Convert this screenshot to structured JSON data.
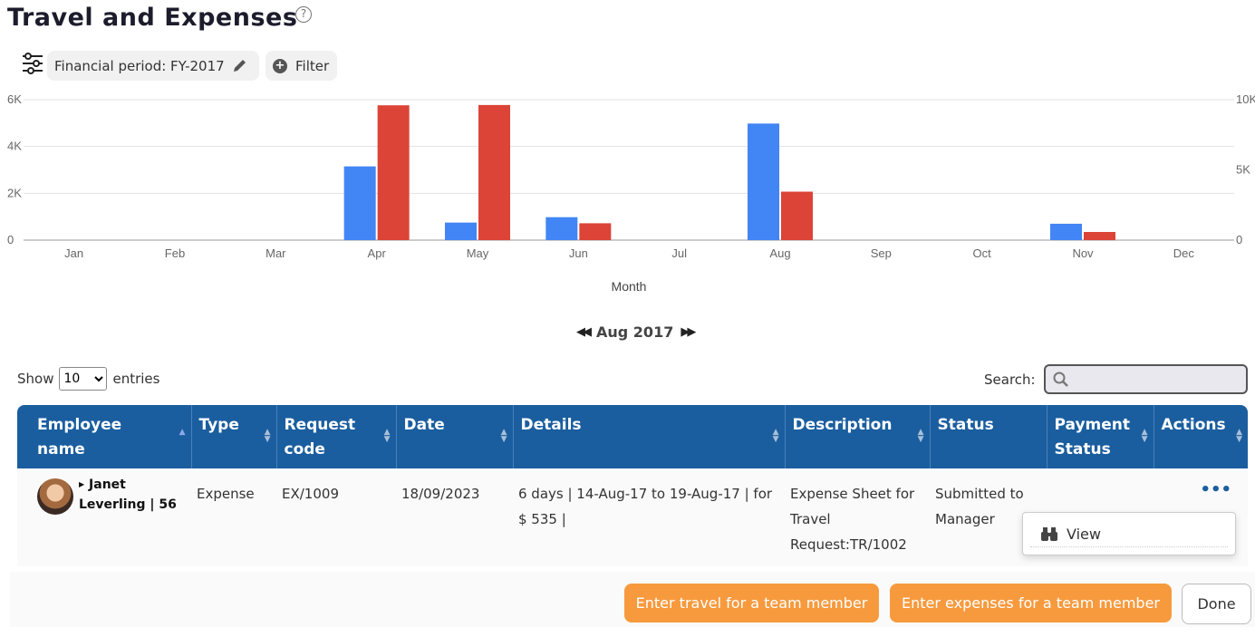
{
  "header": {
    "title": "Travel and Expenses",
    "help_icon": "question-circle-icon"
  },
  "toolbar": {
    "settings_icon": "sliders-icon",
    "period_label": "Financial period: FY-2017",
    "edit_icon": "pencil-icon",
    "filter_label": "Filter",
    "filter_icon": "plus-circle-icon"
  },
  "chart_data": {
    "type": "bar",
    "xlabel": "Month",
    "categories": [
      "Jan",
      "Feb",
      "Mar",
      "Apr",
      "May",
      "Jun",
      "Jul",
      "Aug",
      "Sep",
      "Oct",
      "Nov",
      "Dec"
    ],
    "left_axis": {
      "ticks": [
        "0",
        "2K",
        "4K",
        "6K"
      ],
      "ylim": [
        0,
        6000
      ]
    },
    "right_axis": {
      "ticks": [
        "0",
        "5K",
        "10K"
      ],
      "ylim": [
        0,
        10000
      ]
    },
    "series": [
      {
        "color": "#4285f4",
        "axis": "left",
        "values": [
          0,
          0,
          0,
          3150,
          750,
          980,
          0,
          4980,
          0,
          0,
          700,
          0
        ]
      },
      {
        "color": "#db4437",
        "axis": "right",
        "values": [
          0,
          0,
          0,
          9600,
          9620,
          1200,
          0,
          3450,
          0,
          0,
          580,
          0
        ]
      }
    ],
    "grid": true
  },
  "pager": {
    "label": "Aug 2017",
    "prev_icon": "double-left-arrow-icon",
    "next_icon": "double-right-arrow-icon"
  },
  "table_controls": {
    "show_label": "Show",
    "entries_label": "entries",
    "page_size": "10",
    "search_label": "Search:",
    "search_icon": "magnifier-icon"
  },
  "table": {
    "columns": [
      "Employee name",
      "Type",
      "Request code",
      "Date",
      "Details",
      "Description",
      "Status",
      "Payment Status",
      "Actions"
    ],
    "rows": [
      {
        "employee": "Janet Leverling | 56",
        "type": "Expense",
        "request_code": "EX/1009",
        "date": "18/09/2023",
        "details": "6 days | 14-Aug-17 to 19-Aug-17 | for $ 535 |",
        "description": "Expense Sheet for Travel Request:TR/1002",
        "status": "Submitted to Manager",
        "payment_status": "",
        "actions_icon": "ellipsis-icon"
      }
    ]
  },
  "action_menu": {
    "view_label": "View",
    "view_icon": "binoculars-icon"
  },
  "footer": {
    "travel_button": "Enter travel for a team member",
    "expenses_button": "Enter expenses for a team member",
    "done_button": "Done"
  }
}
